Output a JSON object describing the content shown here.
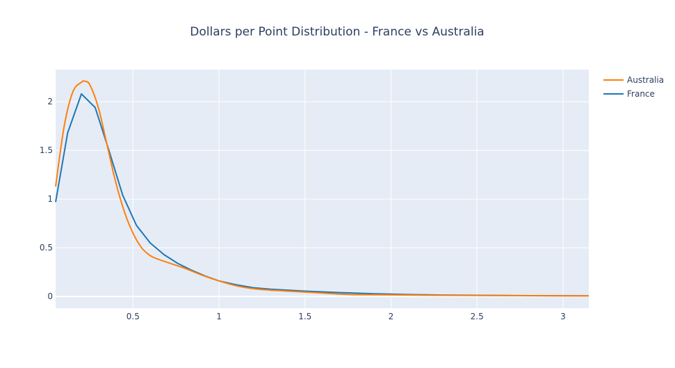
{
  "chart_data": {
    "type": "line",
    "title": "Dollars per Point Distribution - France vs Australia",
    "xlabel": "",
    "ylabel": "",
    "xlim": [
      0.05,
      3.15
    ],
    "ylim": [
      -0.12,
      2.33
    ],
    "x_ticks": [
      {
        "value": 0.5,
        "label": "0.5"
      },
      {
        "value": 1,
        "label": "1"
      },
      {
        "value": 1.5,
        "label": "1.5"
      },
      {
        "value": 2,
        "label": "2"
      },
      {
        "value": 2.5,
        "label": "2.5"
      },
      {
        "value": 3,
        "label": "3"
      }
    ],
    "y_ticks": [
      {
        "value": 0,
        "label": "0"
      },
      {
        "value": 0.5,
        "label": "0.5"
      },
      {
        "value": 1,
        "label": "1"
      },
      {
        "value": 1.5,
        "label": "1.5"
      },
      {
        "value": 2,
        "label": "2"
      }
    ],
    "grid": true,
    "legend_position": "top-right",
    "plot_bg": "#e5ecf6",
    "grid_color": "#ffffff",
    "title_color": "#2a3f5f",
    "tick_color": "#2a3f5f",
    "series": [
      {
        "name": "Australia",
        "color": "#ff7f0e",
        "smooth": true,
        "x": [
          0.05,
          0.1,
          0.15,
          0.2,
          0.22,
          0.25,
          0.3,
          0.35,
          0.4,
          0.45,
          0.5,
          0.55,
          0.6,
          0.65,
          0.7,
          0.8,
          0.9,
          1.0,
          1.1,
          1.2,
          1.3,
          1.4,
          1.5,
          1.6,
          1.7,
          1.8,
          2.0,
          2.2,
          2.5,
          3.0,
          3.15
        ],
        "y": [
          1.13,
          1.75,
          2.1,
          2.2,
          2.21,
          2.17,
          1.93,
          1.55,
          1.17,
          0.87,
          0.65,
          0.5,
          0.42,
          0.38,
          0.35,
          0.29,
          0.22,
          0.16,
          0.11,
          0.08,
          0.065,
          0.055,
          0.045,
          0.035,
          0.025,
          0.018,
          0.017,
          0.013,
          0.01,
          0.007,
          0.007
        ]
      },
      {
        "name": "France",
        "color": "#1f77b4",
        "smooth": false,
        "x": [
          0.05,
          0.12,
          0.2,
          0.28,
          0.36,
          0.44,
          0.52,
          0.6,
          0.68,
          0.76,
          0.84,
          0.92,
          1.0,
          1.1,
          1.2,
          1.3,
          1.5,
          1.7,
          1.9,
          2.1,
          2.3,
          2.5,
          2.8,
          3.15
        ],
        "y": [
          0.97,
          1.68,
          2.08,
          1.94,
          1.5,
          1.04,
          0.73,
          0.55,
          0.43,
          0.34,
          0.27,
          0.21,
          0.16,
          0.12,
          0.09,
          0.075,
          0.055,
          0.04,
          0.028,
          0.02,
          0.015,
          0.012,
          0.009,
          0.007
        ]
      }
    ]
  }
}
